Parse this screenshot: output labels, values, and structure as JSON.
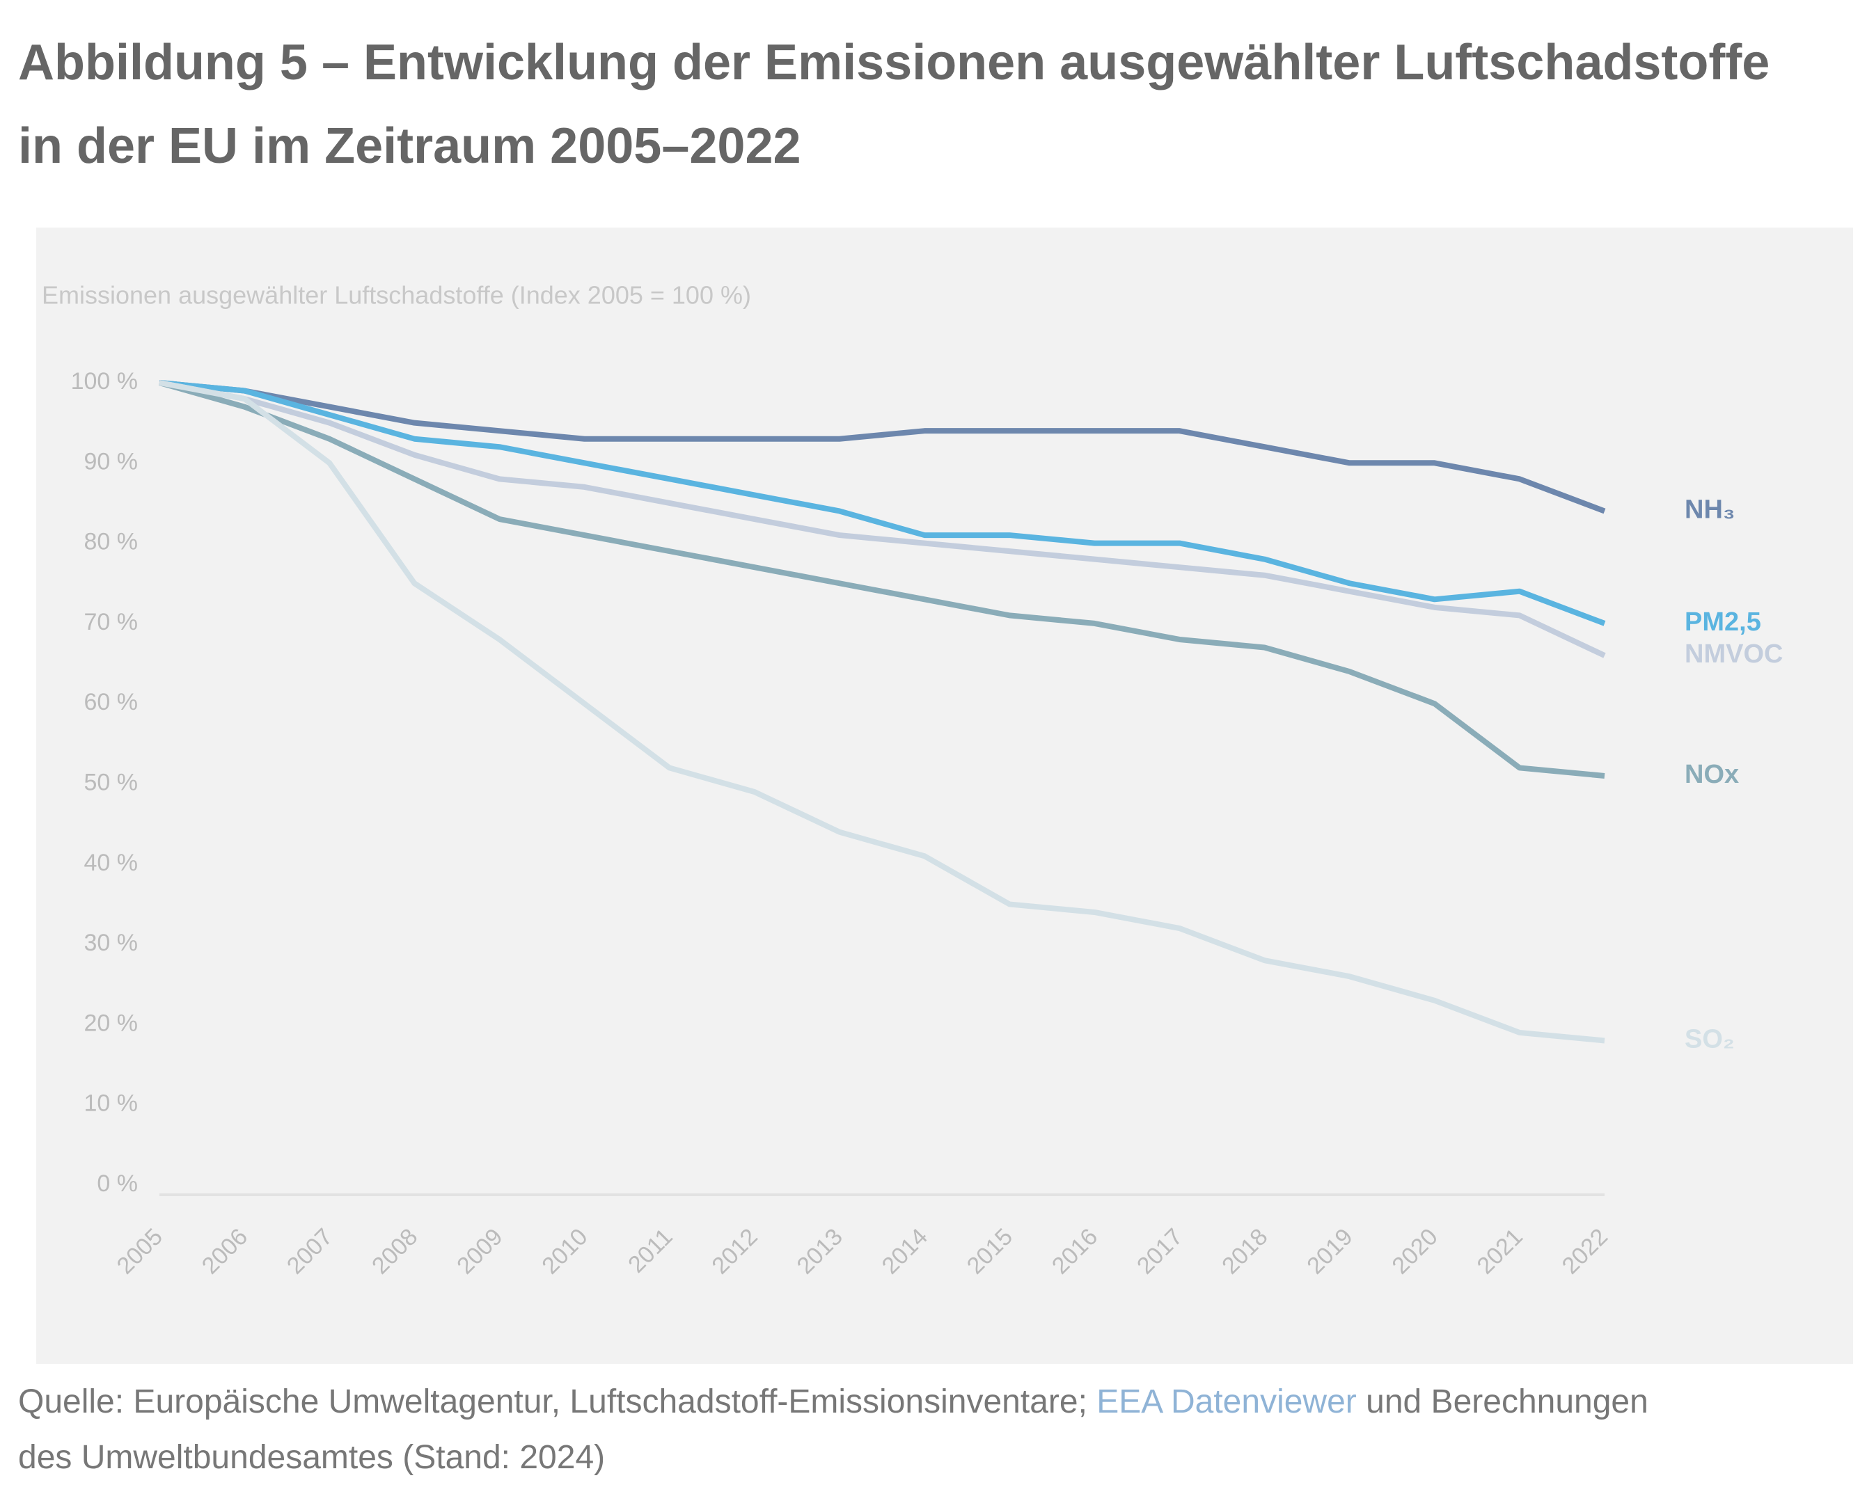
{
  "header": {
    "title": "Abbildung 5 – Entwicklung der Emissionen ausgewählter Luftschadstoffe in der EU im Zeitraum 2005–2022"
  },
  "chart_data": {
    "type": "line",
    "subtitle": "Emissionen ausgewählter Luftschadstoffe (Index 2005 = 100 %)",
    "categories": [
      "2005",
      "2006",
      "2007",
      "2008",
      "2009",
      "2010",
      "2011",
      "2012",
      "2013",
      "2014",
      "2015",
      "2016",
      "2017",
      "2018",
      "2019",
      "2020",
      "2021",
      "2022"
    ],
    "series": [
      {
        "name": "NH₃",
        "color": "#6d87ad",
        "values": [
          100,
          99,
          97,
          95,
          94,
          93,
          93,
          93,
          93,
          94,
          94,
          94,
          94,
          92,
          90,
          90,
          88,
          84
        ]
      },
      {
        "name": "PM2,5",
        "color": "#5ab4e0",
        "values": [
          100,
          99,
          96,
          93,
          92,
          90,
          88,
          86,
          84,
          81,
          81,
          80,
          80,
          78,
          75,
          73,
          74,
          70
        ]
      },
      {
        "name": "NMVOC",
        "color": "#c3cddd",
        "values": [
          100,
          98,
          95,
          91,
          88,
          87,
          85,
          83,
          81,
          80,
          79,
          78,
          77,
          76,
          74,
          72,
          71,
          66
        ]
      },
      {
        "name": "NOx",
        "color": "#8aacb8",
        "values": [
          100,
          97,
          93,
          88,
          83,
          81,
          79,
          77,
          75,
          73,
          71,
          70,
          68,
          67,
          64,
          60,
          52,
          51
        ]
      },
      {
        "name": "SO₂",
        "color": "#d3e0e6",
        "values": [
          100,
          98,
          90,
          75,
          68,
          60,
          52,
          49,
          44,
          41,
          35,
          34,
          32,
          28,
          26,
          23,
          19,
          18
        ]
      }
    ],
    "ylim": [
      0,
      100
    ],
    "yticks": [
      {
        "value": 0,
        "label": "0 %"
      },
      {
        "value": 10,
        "label": "10 %"
      },
      {
        "value": 20,
        "label": "20 %"
      },
      {
        "value": 30,
        "label": "30 %"
      },
      {
        "value": 40,
        "label": "40 %"
      },
      {
        "value": 50,
        "label": "50 %"
      },
      {
        "value": 60,
        "label": "60 %"
      },
      {
        "value": 70,
        "label": "70 %"
      },
      {
        "value": 80,
        "label": "80 %"
      },
      {
        "value": 90,
        "label": "90 %"
      },
      {
        "value": 100,
        "label": "100 %"
      }
    ],
    "grid": false
  },
  "footer": {
    "source": "Quelle: Europäische Umweltagentur, Luftschadstoff-Emissionsinventare;",
    "link": "EEA Datenviewer",
    "note": "und Berechnungen des Umweltbundesamtes (Stand: 2024)"
  }
}
